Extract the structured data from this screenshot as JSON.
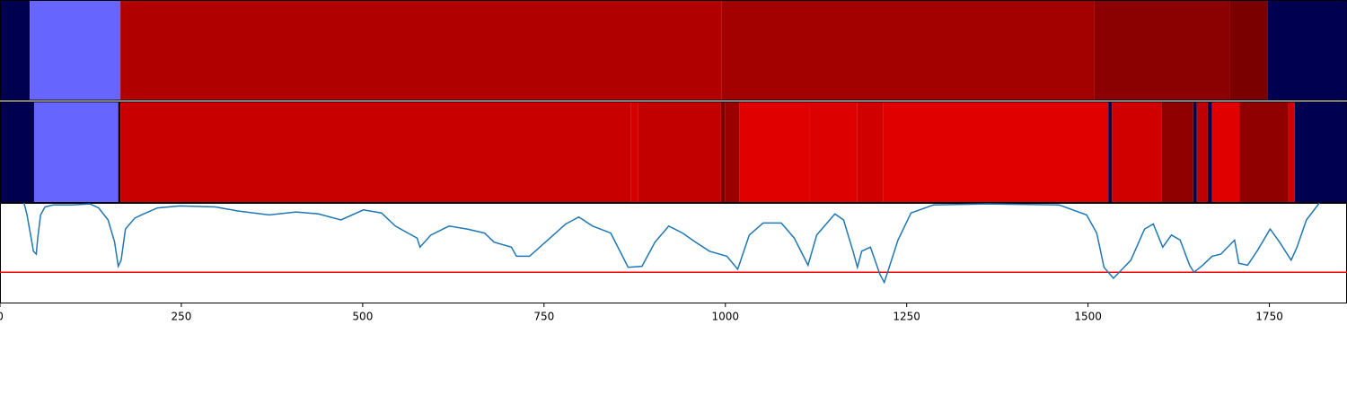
{
  "chart_data": [
    {
      "type": "segments",
      "xlim": [
        0,
        1857
      ],
      "segments": [
        {
          "start": 0,
          "end": 41,
          "color": "#000050"
        },
        {
          "start": 41,
          "end": 166,
          "color": "#6666ff"
        },
        {
          "start": 166,
          "end": 995,
          "color": "#b00000"
        },
        {
          "start": 995,
          "end": 1509,
          "color": "#a30000"
        },
        {
          "start": 1509,
          "end": 1696,
          "color": "#8b0000"
        },
        {
          "start": 1696,
          "end": 1748,
          "color": "#7a0000"
        },
        {
          "start": 1748,
          "end": 1857,
          "color": "#000050"
        }
      ]
    },
    {
      "type": "segments",
      "xlim": [
        0,
        1857
      ],
      "segments": [
        {
          "start": 0,
          "end": 47,
          "color": "#000050"
        },
        {
          "start": 47,
          "end": 163,
          "color": "#6666ff"
        },
        {
          "start": 163,
          "end": 166,
          "color": "#000000"
        },
        {
          "start": 166,
          "end": 870,
          "color": "#c80000"
        },
        {
          "start": 870,
          "end": 880,
          "color": "#d40000"
        },
        {
          "start": 880,
          "end": 994,
          "color": "#c20000"
        },
        {
          "start": 994,
          "end": 1000,
          "color": "#7a0000"
        },
        {
          "start": 1000,
          "end": 1019,
          "color": "#9a0000"
        },
        {
          "start": 1019,
          "end": 1116,
          "color": "#e00000"
        },
        {
          "start": 1116,
          "end": 1182,
          "color": "#dd0000"
        },
        {
          "start": 1182,
          "end": 1218,
          "color": "#d00000"
        },
        {
          "start": 1218,
          "end": 1528,
          "color": "#e00000"
        },
        {
          "start": 1528,
          "end": 1533,
          "color": "#000050"
        },
        {
          "start": 1533,
          "end": 1601,
          "color": "#d00000"
        },
        {
          "start": 1601,
          "end": 1645,
          "color": "#900000"
        },
        {
          "start": 1645,
          "end": 1650,
          "color": "#000050"
        },
        {
          "start": 1650,
          "end": 1665,
          "color": "#c00000"
        },
        {
          "start": 1665,
          "end": 1671,
          "color": "#000050"
        },
        {
          "start": 1671,
          "end": 1709,
          "color": "#e00000"
        },
        {
          "start": 1709,
          "end": 1776,
          "color": "#900000"
        },
        {
          "start": 1776,
          "end": 1785,
          "color": "#d00000"
        },
        {
          "start": 1785,
          "end": 1857,
          "color": "#000050"
        }
      ]
    },
    {
      "type": "line",
      "xlim": [
        0,
        1857
      ],
      "ylim": [
        0,
        1
      ],
      "xticks": [
        0,
        250,
        500,
        750,
        1000,
        1250,
        1500,
        1750
      ],
      "hline": 0.31,
      "hline_color": "#ff0000",
      "series": [
        {
          "color": "#1f77b4",
          "x": [
            33,
            37,
            43,
            46,
            50,
            52,
            56,
            62,
            74,
            99,
            124,
            136,
            149,
            158,
            163,
            167,
            173,
            186,
            198,
            217,
            248,
            297,
            328,
            371,
            408,
            439,
            470,
            501,
            526,
            545,
            575,
            579,
            594,
            619,
            644,
            668,
            681,
            705,
            712,
            730,
            755,
            780,
            798,
            817,
            842,
            866,
            885,
            903,
            922,
            941,
            959,
            978,
            1002,
            1017,
            1033,
            1052,
            1077,
            1095,
            1114,
            1126,
            1151,
            1163,
            1176,
            1182,
            1188,
            1200,
            1213,
            1219,
            1225,
            1238,
            1256,
            1287,
            1361,
            1460,
            1498,
            1512,
            1522,
            1535,
            1547,
            1559,
            1578,
            1590,
            1603,
            1615,
            1627,
            1640,
            1646,
            1658,
            1671,
            1683,
            1702,
            1708,
            1720,
            1733,
            1751,
            1764,
            1780,
            1788,
            1801,
            1819
          ],
          "values": [
            1.0,
            0.89,
            0.65,
            0.52,
            0.49,
            0.65,
            0.88,
            0.96,
            0.98,
            0.98,
            0.99,
            0.95,
            0.83,
            0.61,
            0.37,
            0.43,
            0.74,
            0.85,
            0.89,
            0.95,
            0.97,
            0.96,
            0.92,
            0.88,
            0.91,
            0.89,
            0.83,
            0.93,
            0.9,
            0.77,
            0.65,
            0.56,
            0.68,
            0.77,
            0.74,
            0.7,
            0.61,
            0.56,
            0.47,
            0.47,
            0.63,
            0.79,
            0.86,
            0.77,
            0.7,
            0.36,
            0.37,
            0.61,
            0.77,
            0.7,
            0.61,
            0.52,
            0.47,
            0.34,
            0.68,
            0.8,
            0.8,
            0.65,
            0.38,
            0.68,
            0.89,
            0.83,
            0.52,
            0.36,
            0.52,
            0.56,
            0.29,
            0.21,
            0.34,
            0.63,
            0.9,
            0.98,
            0.99,
            0.98,
            0.88,
            0.7,
            0.36,
            0.25,
            0.34,
            0.43,
            0.74,
            0.79,
            0.56,
            0.68,
            0.63,
            0.38,
            0.31,
            0.38,
            0.47,
            0.49,
            0.63,
            0.4,
            0.38,
            0.52,
            0.74,
            0.61,
            0.43,
            0.56,
            0.83,
            1.0
          ]
        }
      ]
    }
  ]
}
